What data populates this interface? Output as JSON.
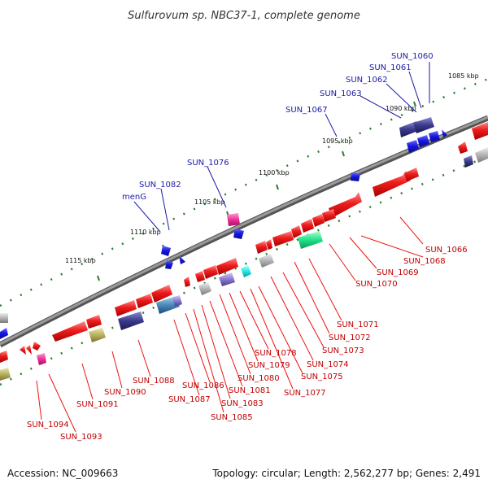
{
  "title": "Sulfurovum sp. NBC37-1, complete genome",
  "footer": {
    "accession": "Accession: NC_009663",
    "summary": "Topology: circular; Length: 2,562,277 bp; Genes: 2,491"
  },
  "colors": {
    "backbone": "#7a7a7a",
    "tick_dot": "#2e7d2e",
    "label_blue": "#1a1aa8",
    "label_red": "#c00000",
    "gene_red": "#ee1c1c",
    "gene_blue": "#1414e0",
    "gene_navy": "#3a3a8c",
    "gene_green": "#22e08a",
    "gene_cyan": "#22e8e8",
    "gene_pink": "#f0309a",
    "gene_gray": "#b4b4b4",
    "gene_olive": "#b8b060",
    "gene_purple": "#8878cc",
    "gene_steel": "#4a8ab8"
  },
  "scale_labels": [
    "1085 kbp",
    "1090 kbp",
    "1095 kbp",
    "1100 kbp",
    "1105 kbp",
    "1110 kbp",
    "1115 kbp"
  ],
  "top_labels": [
    "SUN_1060",
    "SUN_1061",
    "SUN_1062",
    "SUN_1063",
    "SUN_1067",
    "SUN_1076",
    "SUN_1082",
    "menG"
  ],
  "bottom_labels": [
    "SUN_1066",
    "SUN_1068",
    "SUN_1069",
    "SUN_1070",
    "SUN_1071",
    "SUN_1072",
    "SUN_1073",
    "SUN_1074",
    "SUN_1075",
    "SUN_1077",
    "SUN_1078",
    "SUN_1079",
    "SUN_1080",
    "SUN_1081",
    "SUN_1083",
    "SUN_1085",
    "SUN_1086",
    "SUN_1087",
    "SUN_1088",
    "SUN_1090",
    "SUN_1091",
    "SUN_1093",
    "SUN_1094"
  ]
}
